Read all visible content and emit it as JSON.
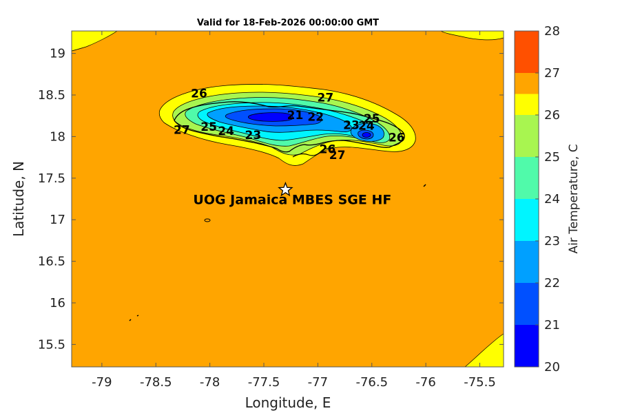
{
  "title": "Valid for 18-Feb-2026 00:00:00 GMT",
  "station": {
    "name": "UOG Jamaica MBES SGE HF",
    "lon": -77.3,
    "lat": 17.36,
    "marker": "star-icon"
  },
  "chart_data": {
    "type": "contour-map",
    "xlabel": "Longitude, E",
    "ylabel": "Latitude, N",
    "xlim": [
      -79.28,
      -75.28
    ],
    "ylim": [
      15.23,
      19.27
    ],
    "x_ticks": [
      -79,
      -78.5,
      -78,
      -77.5,
      -77,
      -76.5,
      -76,
      -75.5
    ],
    "x_tick_labels": [
      "-79",
      "-78.5",
      "-78",
      "-77.5",
      "-77",
      "-76.5",
      "-76",
      "-75.5"
    ],
    "y_ticks": [
      15.5,
      16,
      16.5,
      17,
      17.5,
      18,
      18.5,
      19
    ],
    "y_tick_labels": [
      "15.5",
      "16",
      "16.5",
      "17",
      "17.5",
      "18",
      "18.5",
      "19"
    ],
    "background_value_range": [
      26,
      27
    ],
    "colorbar": {
      "label": "Air Temperature, C",
      "range": [
        20,
        28
      ],
      "ticks": [
        20,
        21,
        22,
        23,
        24,
        25,
        26,
        27,
        28
      ],
      "tick_labels": [
        "20",
        "21",
        "22",
        "23",
        "24",
        "25",
        "26",
        "27",
        "28"
      ],
      "levels": [
        {
          "from": 20,
          "to": 21,
          "color": "#0000ff"
        },
        {
          "from": 21,
          "to": 22,
          "color": "#0050ff"
        },
        {
          "from": 22,
          "to": 23,
          "color": "#00a0ff"
        },
        {
          "from": 23,
          "to": 24,
          "color": "#00f5ff"
        },
        {
          "from": 24,
          "to": 25,
          "color": "#50faaa"
        },
        {
          "from": 25,
          "to": 26,
          "color": "#a8f550"
        },
        {
          "from": 26,
          "to": 26.5,
          "color": "#ffff00"
        },
        {
          "from": 26.5,
          "to": 27,
          "color": "#ffa500"
        },
        {
          "from": 27,
          "to": 28,
          "color": "#ff5000"
        }
      ]
    },
    "contour_labels": [
      {
        "text": "26",
        "lon": -78.1,
        "lat": 18.52
      },
      {
        "text": "27",
        "lon": -76.93,
        "lat": 18.47
      },
      {
        "text": "21",
        "lon": -77.21,
        "lat": 18.26
      },
      {
        "text": "22",
        "lon": -77.02,
        "lat": 18.24
      },
      {
        "text": "25",
        "lon": -76.5,
        "lat": 18.22
      },
      {
        "text": "23",
        "lon": -76.69,
        "lat": 18.14
      },
      {
        "text": "24",
        "lon": -76.55,
        "lat": 18.13
      },
      {
        "text": "27",
        "lon": -78.26,
        "lat": 18.08
      },
      {
        "text": "25",
        "lon": -78.01,
        "lat": 18.12
      },
      {
        "text": "24",
        "lon": -77.85,
        "lat": 18.07
      },
      {
        "text": "23",
        "lon": -77.6,
        "lat": 18.02
      },
      {
        "text": "26",
        "lon": -76.27,
        "lat": 17.99
      },
      {
        "text": "26",
        "lon": -76.91,
        "lat": 17.85
      },
      {
        "text": "27",
        "lon": -76.82,
        "lat": 17.78
      }
    ]
  }
}
